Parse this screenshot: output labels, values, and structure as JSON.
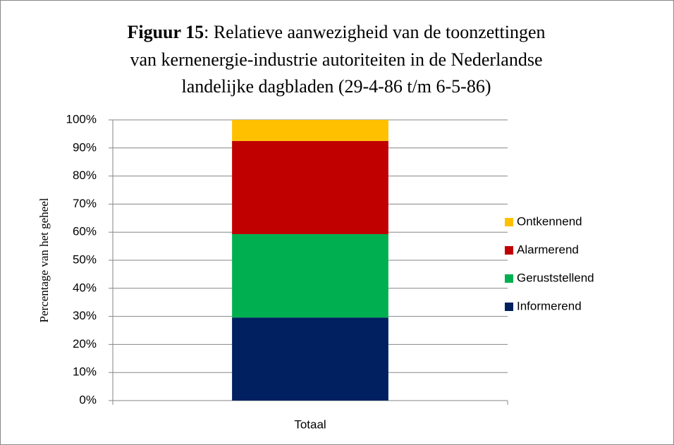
{
  "chart_data": {
    "type": "stacked_bar",
    "title_bold": "Figuur 15",
    "title_lines": [
      ": Relatieve aanwezigheid van de toonzettingen",
      "van kernenergie-industrie autoriteiten in de Nederlandse",
      "landelijke dagbladen (29-4-86 t/m 6-5-86)"
    ],
    "ylabel": "Percentage van het geheel",
    "categories": [
      "Totaal"
    ],
    "series": [
      {
        "name": "Informerend",
        "color": "#002060",
        "values": [
          29.6
        ]
      },
      {
        "name": "Geruststellend",
        "color": "#00b050",
        "values": [
          29.7
        ]
      },
      {
        "name": "Alarmerend",
        "color": "#c00000",
        "values": [
          33.2
        ]
      },
      {
        "name": "Ontkennend",
        "color": "#ffc000",
        "values": [
          7.5
        ]
      }
    ],
    "ylim": [
      0,
      100
    ],
    "yticks": [
      {
        "value": 0,
        "label": "0%"
      },
      {
        "value": 10,
        "label": "10%"
      },
      {
        "value": 20,
        "label": "20%"
      },
      {
        "value": 30,
        "label": "30%"
      },
      {
        "value": 40,
        "label": "40%"
      },
      {
        "value": 50,
        "label": "50%"
      },
      {
        "value": 60,
        "label": "60%"
      },
      {
        "value": 70,
        "label": "70%"
      },
      {
        "value": 80,
        "label": "80%"
      },
      {
        "value": 90,
        "label": "90%"
      },
      {
        "value": 100,
        "label": "100%"
      }
    ],
    "grid": true,
    "legend": "right"
  }
}
